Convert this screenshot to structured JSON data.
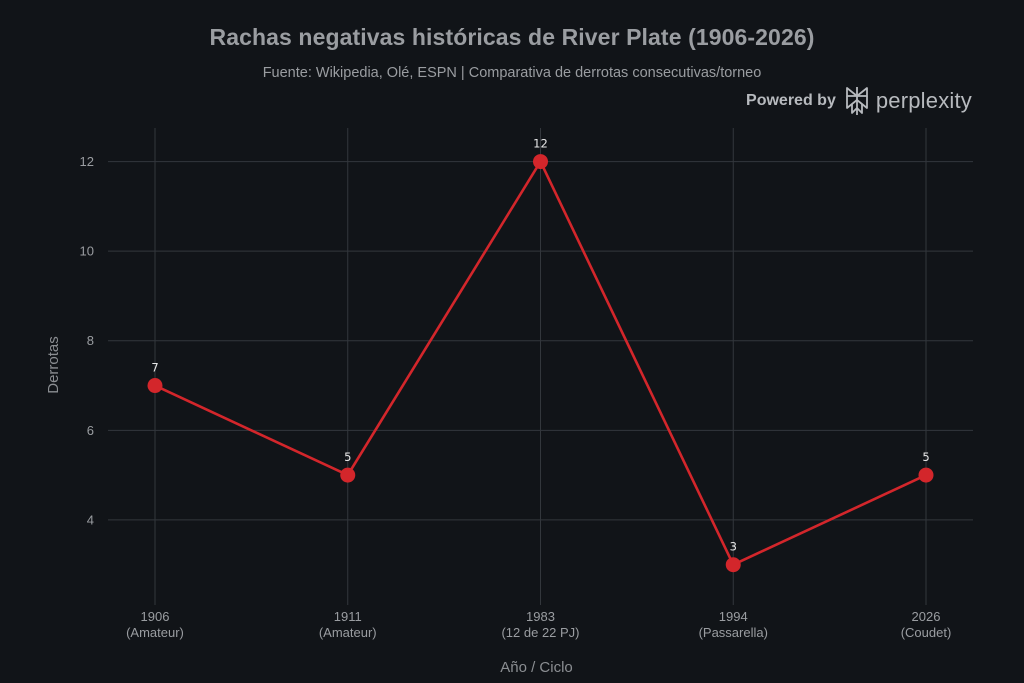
{
  "header": {
    "title": "Rachas negativas históricas de River Plate (1906-2026)",
    "subtitle": "Fuente: Wikipedia, Olé, ESPN | Comparativa de derrotas consecutivas/torneo"
  },
  "branding": {
    "prefix": "Powered by",
    "brand": "perplexity",
    "icon": "perplexity-logo-icon"
  },
  "colors": {
    "background": "#111418",
    "grid": "#33373c",
    "line": "#d3262b",
    "text": "#9a9da1"
  },
  "chart_data": {
    "type": "line",
    "categories": [
      [
        "1906",
        "(Amateur)"
      ],
      [
        "1911",
        "(Amateur)"
      ],
      [
        "1983",
        "(12 de 22 PJ)"
      ],
      [
        "1994",
        "(Passarella)"
      ],
      [
        "2026",
        "(Coudet)"
      ]
    ],
    "series": [
      {
        "values": [
          7,
          5,
          12,
          3,
          5
        ],
        "data_labels": [
          "7",
          "5",
          "12",
          "3",
          "5"
        ]
      }
    ],
    "xlabel": "Año / Ciclo",
    "ylabel": "Derrotas",
    "yticks": [
      4,
      6,
      8,
      10,
      12
    ],
    "ylim": [
      2.1,
      12.75
    ],
    "grid": true,
    "legend": "none"
  }
}
